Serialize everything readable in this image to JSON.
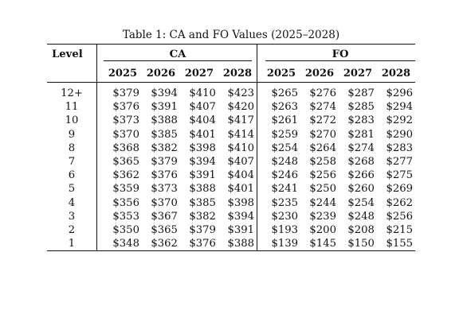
{
  "caption": "Table 1: CA and FO Values (2025–2028)",
  "header": {
    "level_label": "Level",
    "group_ca": "CA",
    "group_fo": "FO",
    "years": [
      "2025",
      "2026",
      "2027",
      "2028"
    ]
  },
  "rows": [
    {
      "level": "12+",
      "ca": [
        "$379",
        "$394",
        "$410",
        "$423"
      ],
      "fo": [
        "$265",
        "$276",
        "$287",
        "$296"
      ]
    },
    {
      "level": "11",
      "ca": [
        "$376",
        "$391",
        "$407",
        "$420"
      ],
      "fo": [
        "$263",
        "$274",
        "$285",
        "$294"
      ]
    },
    {
      "level": "10",
      "ca": [
        "$373",
        "$388",
        "$404",
        "$417"
      ],
      "fo": [
        "$261",
        "$272",
        "$283",
        "$292"
      ]
    },
    {
      "level": "9",
      "ca": [
        "$370",
        "$385",
        "$401",
        "$414"
      ],
      "fo": [
        "$259",
        "$270",
        "$281",
        "$290"
      ]
    },
    {
      "level": "8",
      "ca": [
        "$368",
        "$382",
        "$398",
        "$410"
      ],
      "fo": [
        "$254",
        "$264",
        "$274",
        "$283"
      ]
    },
    {
      "level": "7",
      "ca": [
        "$365",
        "$379",
        "$394",
        "$407"
      ],
      "fo": [
        "$248",
        "$258",
        "$268",
        "$277"
      ]
    },
    {
      "level": "6",
      "ca": [
        "$362",
        "$376",
        "$391",
        "$404"
      ],
      "fo": [
        "$246",
        "$256",
        "$266",
        "$275"
      ]
    },
    {
      "level": "5",
      "ca": [
        "$359",
        "$373",
        "$388",
        "$401"
      ],
      "fo": [
        "$241",
        "$250",
        "$260",
        "$269"
      ]
    },
    {
      "level": "4",
      "ca": [
        "$356",
        "$370",
        "$385",
        "$398"
      ],
      "fo": [
        "$235",
        "$244",
        "$254",
        "$262"
      ]
    },
    {
      "level": "3",
      "ca": [
        "$353",
        "$367",
        "$382",
        "$394"
      ],
      "fo": [
        "$230",
        "$239",
        "$248",
        "$256"
      ]
    },
    {
      "level": "2",
      "ca": [
        "$350",
        "$365",
        "$379",
        "$391"
      ],
      "fo": [
        "$193",
        "$200",
        "$208",
        "$215"
      ]
    },
    {
      "level": "1",
      "ca": [
        "$348",
        "$362",
        "$376",
        "$388"
      ],
      "fo": [
        "$139",
        "$145",
        "$150",
        "$155"
      ]
    }
  ]
}
